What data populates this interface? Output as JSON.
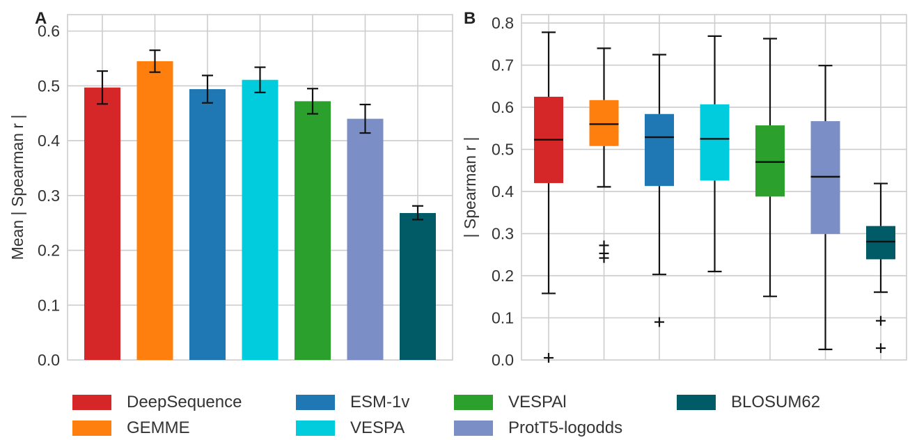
{
  "chart_data": [
    {
      "type": "bar",
      "panel_label": "A",
      "ylabel": "Mean | Spearman r |",
      "xlabel": "",
      "ylim": [
        0,
        0.63
      ],
      "yticks": [
        "0.0",
        "0.1",
        "0.2",
        "0.3",
        "0.4",
        "0.5",
        "0.6"
      ],
      "grid": true,
      "series": [
        {
          "name": "DeepSequence",
          "value": 0.497,
          "err_low": 0.467,
          "err_high": 0.527,
          "color": "#d62728"
        },
        {
          "name": "GEMME",
          "value": 0.545,
          "err_low": 0.525,
          "err_high": 0.565,
          "color": "#ff7f0e"
        },
        {
          "name": "ESM-1v",
          "value": 0.494,
          "err_low": 0.469,
          "err_high": 0.519,
          "color": "#1f77b4"
        },
        {
          "name": "VESPA",
          "value": 0.511,
          "err_low": 0.488,
          "err_high": 0.534,
          "color": "#00ccdd"
        },
        {
          "name": "VESPAl",
          "value": 0.472,
          "err_low": 0.449,
          "err_high": 0.495,
          "color": "#2ca02c"
        },
        {
          "name": "ProtT5-logodds",
          "value": 0.44,
          "err_low": 0.414,
          "err_high": 0.466,
          "color": "#7b8fc6"
        },
        {
          "name": "BLOSUM62",
          "value": 0.268,
          "err_low": 0.256,
          "err_high": 0.281,
          "color": "#005b66"
        }
      ]
    },
    {
      "type": "box",
      "panel_label": "B",
      "ylabel": "| Spearman r |",
      "xlabel": "",
      "ylim": [
        0,
        0.82
      ],
      "yticks": [
        "0.0",
        "0.1",
        "0.2",
        "0.3",
        "0.4",
        "0.5",
        "0.6",
        "0.7",
        "0.8"
      ],
      "grid": true,
      "series": [
        {
          "name": "DeepSequence",
          "whisker_low": 0.158,
          "q1": 0.42,
          "median": 0.523,
          "q3": 0.625,
          "whisker_high": 0.778,
          "outliers": [
            0.005
          ],
          "color": "#d62728"
        },
        {
          "name": "GEMME",
          "whisker_low": 0.411,
          "q1": 0.508,
          "median": 0.56,
          "q3": 0.617,
          "whisker_high": 0.74,
          "outliers": [
            0.272,
            0.253,
            0.242
          ],
          "color": "#ff7f0e"
        },
        {
          "name": "ESM-1v",
          "whisker_low": 0.203,
          "q1": 0.413,
          "median": 0.529,
          "q3": 0.584,
          "whisker_high": 0.725,
          "outliers": [
            0.09
          ],
          "color": "#1f77b4"
        },
        {
          "name": "VESPA",
          "whisker_low": 0.21,
          "q1": 0.426,
          "median": 0.525,
          "q3": 0.607,
          "whisker_high": 0.769,
          "outliers": [],
          "color": "#00ccdd"
        },
        {
          "name": "VESPAl",
          "whisker_low": 0.151,
          "q1": 0.388,
          "median": 0.47,
          "q3": 0.557,
          "whisker_high": 0.763,
          "outliers": [],
          "color": "#2ca02c"
        },
        {
          "name": "ProtT5-logodds",
          "whisker_low": 0.025,
          "q1": 0.299,
          "median": 0.435,
          "q3": 0.567,
          "whisker_high": 0.699,
          "outliers": [],
          "color": "#7b8fc6"
        },
        {
          "name": "BLOSUM62",
          "whisker_low": 0.161,
          "q1": 0.239,
          "median": 0.281,
          "q3": 0.318,
          "whisker_high": 0.419,
          "outliers": [
            0.093,
            0.028
          ],
          "color": "#005b66"
        }
      ]
    }
  ],
  "legend": {
    "placement": "bottom",
    "items": [
      {
        "label": "DeepSequence",
        "color": "#d62728"
      },
      {
        "label": "GEMME",
        "color": "#ff7f0e"
      },
      {
        "label": "ESM-1v",
        "color": "#1f77b4"
      },
      {
        "label": "VESPA",
        "color": "#00ccdd"
      },
      {
        "label": "VESPAl",
        "color": "#2ca02c"
      },
      {
        "label": "ProtT5-logodds",
        "color": "#7b8fc6"
      },
      {
        "label": "BLOSUM62",
        "color": "#005b66"
      }
    ]
  }
}
